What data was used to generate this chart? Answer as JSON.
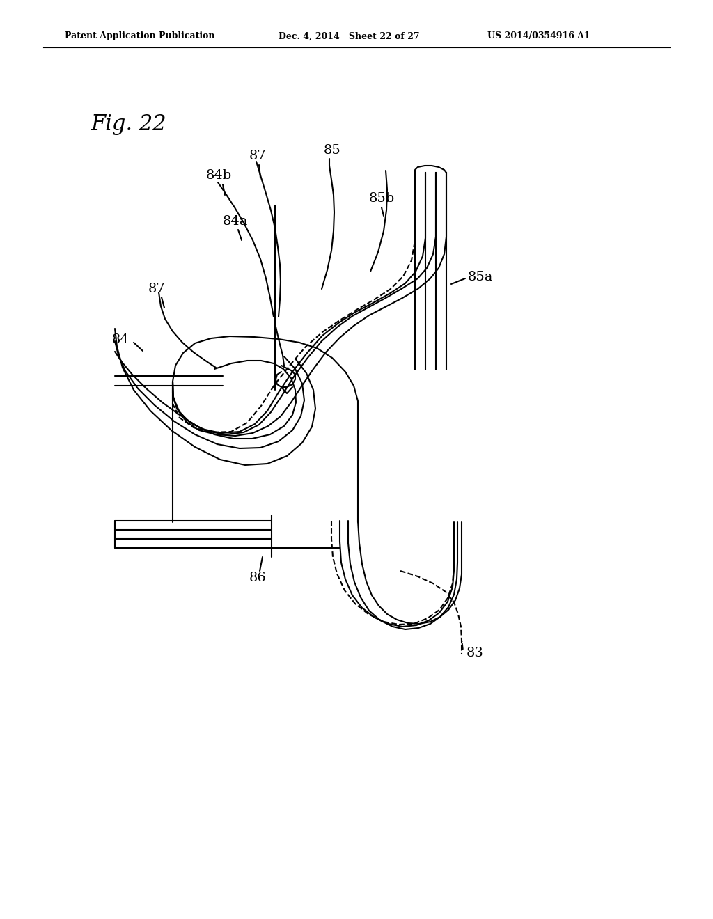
{
  "fig_label": "Fig. 22",
  "header_left": "Patent Application Publication",
  "header_center": "Dec. 4, 2014   Sheet 22 of 27",
  "header_right": "US 2014/0354916 A1",
  "background_color": "#ffffff",
  "line_color": "#000000"
}
